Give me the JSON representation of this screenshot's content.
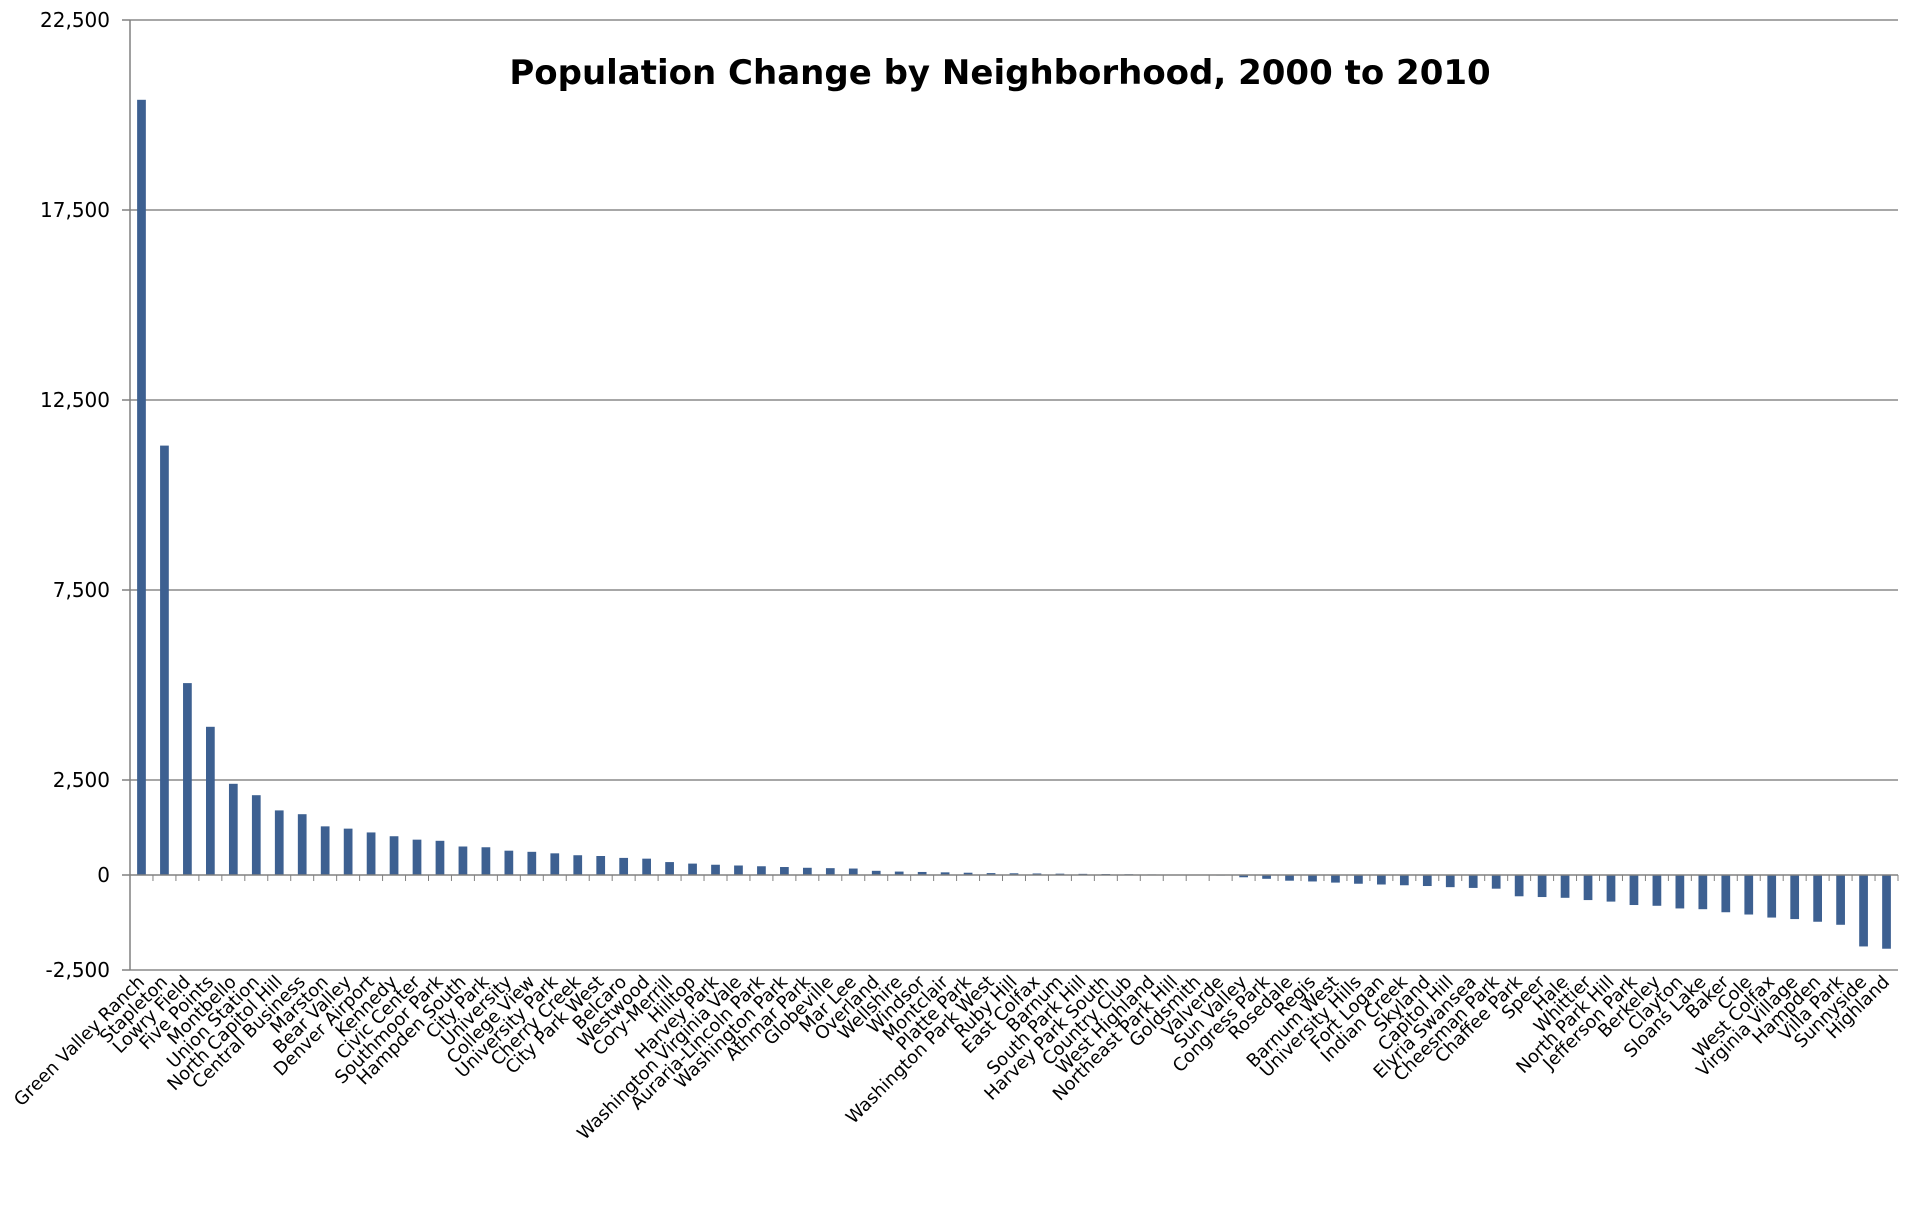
{
  "chart_data": {
    "type": "bar",
    "title": "Population Change by Neighborhood, 2000 to 2010",
    "xlabel": "",
    "ylabel": "",
    "ylim": [
      -2500,
      22500
    ],
    "yticks": [
      -2500,
      0,
      2500,
      7500,
      12500,
      17500,
      22500
    ],
    "ytick_labels": [
      "-2,500",
      "0",
      "2,500",
      "7,500",
      "12,500",
      "17,500",
      "22,500"
    ],
    "grid": true,
    "bar_color": "#3d6091",
    "categories": [
      "Green Valley Ranch",
      "Stapleton",
      "Lowry Field",
      "Five Points",
      "Montbello",
      "Union Station",
      "North Capitol Hill",
      "Central Business",
      "Marston",
      "Bear Valley",
      "Denver Airport",
      "Kennedy",
      "Civic Center",
      "Southmoor Park",
      "Hampden South",
      "City Park",
      "University",
      "College View",
      "University Park",
      "Cherry Creek",
      "City Park West",
      "Belcaro",
      "Westwood",
      "Cory-Merrill",
      "Hilltop",
      "Harvey Park",
      "Washington Virginia Vale",
      "Auraria-Lincoln Park",
      "Washington Park",
      "Athmar Park",
      "Globeville",
      "Mar Lee",
      "Overland",
      "Wellshire",
      "Windsor",
      "Montclair",
      "Platte Park",
      "Washington Park West",
      "Ruby Hill",
      "East Colfax",
      "Barnum",
      "South Park Hill",
      "Harvey Park South",
      "Country Club",
      "West Highland",
      "Northeast Park Hill",
      "Goldsmith",
      "Valverde",
      "Sun Valley",
      "Congress Park",
      "Rosedale",
      "Regis",
      "Barnum West",
      "University Hills",
      "Fort Logan",
      "Indian Creek",
      "Skyland",
      "Capitol Hill",
      "Elyria Swansea",
      "Cheesman Park",
      "Chaffee Park",
      "Speer",
      "Hale",
      "Whittier",
      "North Park Hill",
      "Jefferson Park",
      "Berkeley",
      "Clayton",
      "Sloans Lake",
      "Baker",
      "Cole",
      "West Colfax",
      "Virginia Village",
      "Hampden",
      "Villa Park",
      "Sunnyside",
      "Highland"
    ],
    "values": [
      20400,
      11300,
      5050,
      3900,
      2400,
      2100,
      1700,
      1600,
      1280,
      1220,
      1120,
      1020,
      930,
      900,
      750,
      730,
      640,
      610,
      570,
      520,
      500,
      450,
      430,
      340,
      300,
      270,
      250,
      230,
      210,
      190,
      180,
      170,
      110,
      90,
      80,
      70,
      60,
      50,
      45,
      40,
      35,
      30,
      25,
      20,
      15,
      10,
      5,
      -15,
      -60,
      -100,
      -150,
      -170,
      -200,
      -230,
      -250,
      -270,
      -290,
      -320,
      -340,
      -360,
      -560,
      -580,
      -600,
      -660,
      -700,
      -790,
      -810,
      -880,
      -900,
      -980,
      -1040,
      -1120,
      -1160,
      -1230,
      -1310,
      -1880,
      -1940
    ]
  }
}
